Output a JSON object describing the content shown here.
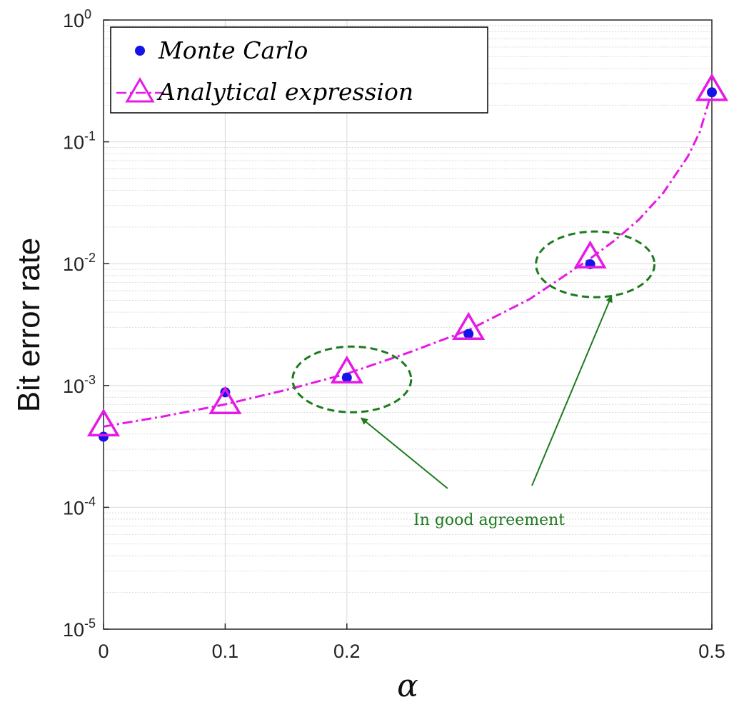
{
  "chart_data": {
    "type": "line",
    "title": "",
    "xlabel": "α",
    "ylabel": "Bit error rate",
    "xlim": [
      0,
      0.5
    ],
    "ylim": [
      1e-05,
      1
    ],
    "y_scale": "log",
    "grid": true,
    "x_ticks": [
      {
        "value": 0,
        "label": "0"
      },
      {
        "value": 0.1,
        "label": "0.1"
      },
      {
        "value": 0.2,
        "label": "0.2"
      },
      {
        "value": 0.5,
        "label": "0.5"
      }
    ],
    "y_ticks": [
      {
        "value": 1e-05,
        "base": "10",
        "exp": "-5"
      },
      {
        "value": 0.0001,
        "base": "10",
        "exp": "-4"
      },
      {
        "value": 0.001,
        "base": "10",
        "exp": "-3"
      },
      {
        "value": 0.01,
        "base": "10",
        "exp": "-2"
      },
      {
        "value": 0.1,
        "base": "10",
        "exp": "-1"
      },
      {
        "value": 1,
        "base": "10",
        "exp": "0"
      }
    ],
    "legend_position": "top-left",
    "series": [
      {
        "name": "Monte Carlo",
        "marker": "filled-circle",
        "color": "#1414e6",
        "points": [
          {
            "x": 0,
            "y": 0.00038
          },
          {
            "x": 0.1,
            "y": 0.00088
          },
          {
            "x": 0.2,
            "y": 0.00116
          },
          {
            "x": 0.3,
            "y": 0.00265
          },
          {
            "x": 0.4,
            "y": 0.0099
          },
          {
            "x": 0.5,
            "y": 0.255
          }
        ]
      },
      {
        "name": "Analytical expression",
        "marker": "triangle",
        "line_style": "dash-dot",
        "color": "#e619e6",
        "points": [
          {
            "x": 0,
            "y": 0.00046
          },
          {
            "x": 0.1,
            "y": 0.0007
          },
          {
            "x": 0.2,
            "y": 0.00125
          },
          {
            "x": 0.3,
            "y": 0.00285
          },
          {
            "x": 0.4,
            "y": 0.011
          },
          {
            "x": 0.5,
            "y": 0.26
          }
        ],
        "curve": [
          {
            "x": 0,
            "y": 0.00046
          },
          {
            "x": 0.05,
            "y": 0.00056
          },
          {
            "x": 0.1,
            "y": 0.0007
          },
          {
            "x": 0.15,
            "y": 0.00092
          },
          {
            "x": 0.2,
            "y": 0.00125
          },
          {
            "x": 0.25,
            "y": 0.00185
          },
          {
            "x": 0.3,
            "y": 0.00285
          },
          {
            "x": 0.35,
            "y": 0.0051
          },
          {
            "x": 0.4,
            "y": 0.011
          },
          {
            "x": 0.42,
            "y": 0.0155
          },
          {
            "x": 0.44,
            "y": 0.023
          },
          {
            "x": 0.46,
            "y": 0.038
          },
          {
            "x": 0.48,
            "y": 0.075
          },
          {
            "x": 0.49,
            "y": 0.12
          },
          {
            "x": 0.5,
            "y": 0.26
          }
        ]
      }
    ],
    "annotations": [
      {
        "text": "In good agreement",
        "color": "#1e7a1e",
        "x": 0.3,
        "y": 0.0001
      }
    ],
    "highlight_ellipses": [
      {
        "x": 0.2,
        "y": 0.00125
      },
      {
        "x": 0.4,
        "y": 0.011
      }
    ]
  }
}
